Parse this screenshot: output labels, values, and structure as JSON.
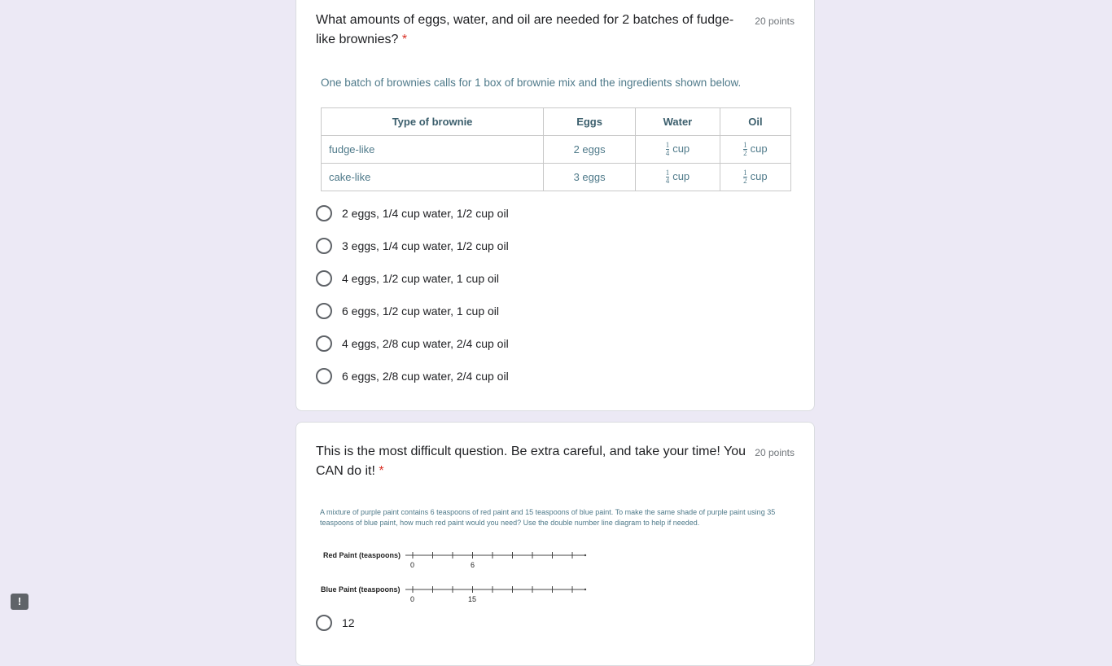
{
  "q1": {
    "title": "What amounts of eggs, water, and oil are needed for 2 batches of fudge-like brownies?",
    "required": "*",
    "points": "20 points",
    "intro": "One batch of brownies calls for 1 box of brownie mix and the ingredients shown below.",
    "table": {
      "headers": [
        "Type of brownie",
        "Eggs",
        "Water",
        "Oil"
      ],
      "rows": [
        {
          "type": "fudge-like",
          "eggs": "2 eggs",
          "water_num": "1",
          "water_den": "4",
          "water_unit": "cup",
          "oil_num": "1",
          "oil_den": "2",
          "oil_unit": "cup"
        },
        {
          "type": "cake-like",
          "eggs": "3 eggs",
          "water_num": "1",
          "water_den": "4",
          "water_unit": "cup",
          "oil_num": "1",
          "oil_den": "2",
          "oil_unit": "cup"
        }
      ]
    },
    "options": [
      "2 eggs, 1/4 cup water, 1/2 cup oil",
      "3 eggs, 1/4 cup water, 1/2 cup oil",
      "4 eggs, 1/2 cup water, 1 cup oil",
      "6 eggs, 1/2 cup water, 1 cup oil",
      "4 eggs, 2/8 cup water, 2/4 cup oil",
      "6 eggs, 2/8 cup water, 2/4 cup oil"
    ]
  },
  "q2": {
    "title": "This is the most difficult question. Be extra careful, and take your time! You CAN do it!",
    "required": "*",
    "points": "20 points",
    "problem": "A mixture of purple paint contains 6 teaspoons of red paint and 15 teaspoons of blue paint. To make the same shade of purple paint using 35 teaspoons of blue paint, how much red paint would you need? Use the double number line diagram to help if needed.",
    "red_label": "Red Paint (teaspoons)",
    "red_ticks": [
      "0",
      "6"
    ],
    "blue_label": "Blue Paint (teaspoons)",
    "blue_ticks": [
      "0",
      "15"
    ],
    "options": [
      "12"
    ]
  },
  "report_icon": "exclamation-icon"
}
